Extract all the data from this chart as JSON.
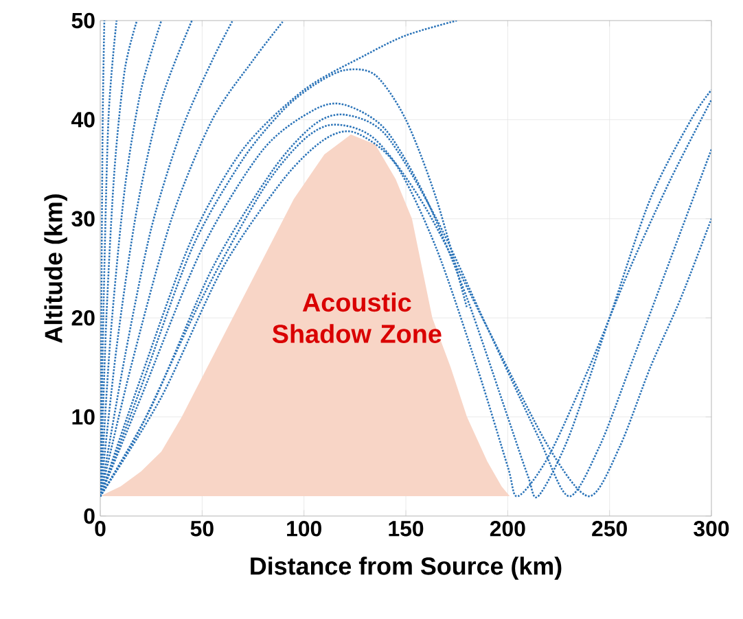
{
  "chart_data": {
    "type": "line",
    "xlabel": "Distance from Source (km)",
    "ylabel": "Altitude (km)",
    "xlim": [
      0,
      300
    ],
    "ylim": [
      0,
      50
    ],
    "xticks": [
      0,
      50,
      100,
      150,
      200,
      250,
      300
    ],
    "yticks": [
      0,
      10,
      20,
      30,
      40,
      50
    ],
    "grid": true,
    "line_style": "dotted",
    "annotations": [
      "Acoustic Shadow Zone"
    ],
    "series": [
      {
        "type": "area",
        "color": "#f8d5c6",
        "x": [
          0,
          10,
          20,
          30,
          40,
          50,
          65,
          80,
          95,
          110,
          123,
          135,
          145,
          153,
          163,
          172,
          180,
          190,
          197,
          201
        ],
        "values": [
          2,
          3,
          4.5,
          6.5,
          10,
          14,
          20,
          26,
          32,
          36.5,
          38.5,
          37.5,
          34,
          30,
          20,
          15,
          10,
          5.5,
          3,
          2
        ]
      },
      {
        "color": "#2a73b8",
        "x": [
          0,
          0.5,
          1.2,
          2
        ],
        "values": [
          2,
          20,
          40,
          50
        ]
      },
      {
        "color": "#2a73b8",
        "x": [
          0,
          1.5,
          4,
          8
        ],
        "values": [
          2,
          20,
          40,
          50
        ]
      },
      {
        "color": "#2a73b8",
        "x": [
          0,
          3,
          7,
          12,
          18
        ],
        "values": [
          2,
          20,
          35,
          45,
          50
        ]
      },
      {
        "color": "#2a73b8",
        "x": [
          0,
          5,
          12,
          20,
          30
        ],
        "values": [
          2,
          18,
          33,
          43,
          50
        ]
      },
      {
        "color": "#2a73b8",
        "x": [
          0,
          8,
          18,
          30,
          45
        ],
        "values": [
          2,
          17,
          31,
          42,
          50
        ]
      },
      {
        "color": "#2a73b8",
        "x": [
          0,
          12,
          25,
          40,
          55,
          65
        ],
        "values": [
          2,
          16,
          29,
          39,
          46,
          50
        ]
      },
      {
        "color": "#2a73b8",
        "x": [
          0,
          15,
          35,
          55,
          75,
          90
        ],
        "values": [
          2,
          15,
          30,
          40,
          46,
          50
        ]
      },
      {
        "color": "#2a73b8",
        "x": [
          0,
          20,
          45,
          70,
          100,
          130,
          150,
          175
        ],
        "values": [
          2,
          14,
          28,
          37,
          43,
          46.5,
          48.5,
          50
        ]
      },
      {
        "color": "#2a73b8",
        "x": [
          0,
          20,
          45,
          70,
          90,
          105,
          120,
          135,
          150,
          165,
          180
        ],
        "values": [
          2,
          13,
          27,
          36,
          41,
          43.5,
          45,
          44.5,
          40,
          32,
          21
        ]
      },
      {
        "color": "#2a73b8",
        "x": [
          0,
          20,
          50,
          80,
          105,
          120,
          140,
          160,
          180,
          200,
          210,
          215,
          230,
          250,
          270,
          290,
          300
        ],
        "values": [
          2,
          12,
          27,
          37,
          41,
          41.5,
          39,
          32,
          22,
          10,
          4,
          2,
          8,
          20,
          32,
          40,
          43
        ]
      },
      {
        "color": "#2a73b8",
        "x": [
          0,
          25,
          55,
          85,
          105,
          120,
          140,
          165,
          190,
          215,
          230,
          245,
          260,
          280,
          300
        ],
        "values": [
          2,
          11,
          25,
          35,
          39.5,
          40.5,
          38.5,
          30,
          19,
          8,
          2,
          7,
          15,
          26,
          37
        ]
      },
      {
        "color": "#2a73b8",
        "x": [
          0,
          20,
          50,
          80,
          100,
          115,
          135,
          160,
          190,
          220,
          240,
          255,
          270,
          285,
          300
        ],
        "values": [
          2,
          9,
          22,
          33,
          38,
          39.5,
          38,
          31,
          19,
          7,
          2,
          7,
          15,
          22,
          30
        ]
      },
      {
        "color": "#2a73b8",
        "x": [
          0,
          30,
          60,
          90,
          110,
          125,
          145,
          165,
          185,
          200,
          205,
          220,
          240,
          260,
          280,
          300
        ],
        "values": [
          2,
          12,
          25,
          34,
          38,
          38.7,
          35.5,
          27,
          15,
          5,
          2,
          6,
          15,
          25,
          34,
          42
        ]
      }
    ]
  }
}
